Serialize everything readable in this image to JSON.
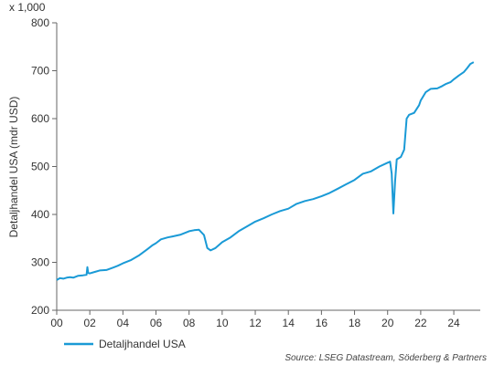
{
  "chart_data": {
    "type": "line",
    "multiplier_label": "x 1,000",
    "ylabel": "Detaljhandel USA (mdr USD)",
    "xlabel": "",
    "xlim": [
      2000,
      2025.6
    ],
    "ylim": [
      200,
      800
    ],
    "y_ticks": [
      200,
      300,
      400,
      500,
      600,
      700,
      800
    ],
    "x_ticks": [
      {
        "value": 2000,
        "label": "00"
      },
      {
        "value": 2002,
        "label": "02"
      },
      {
        "value": 2004,
        "label": "04"
      },
      {
        "value": 2006,
        "label": "06"
      },
      {
        "value": 2008,
        "label": "08"
      },
      {
        "value": 2010,
        "label": "10"
      },
      {
        "value": 2012,
        "label": "12"
      },
      {
        "value": 2014,
        "label": "14"
      },
      {
        "value": 2016,
        "label": "16"
      },
      {
        "value": 2018,
        "label": "18"
      },
      {
        "value": 2020,
        "label": "20"
      },
      {
        "value": 2022,
        "label": "22"
      },
      {
        "value": 2024,
        "label": "24"
      }
    ],
    "grid": false,
    "legend_position": "bottom-left",
    "series": [
      {
        "name": "Detaljhandel USA",
        "color": "#1a9ad6",
        "points": [
          [
            2000.0,
            263
          ],
          [
            2000.2,
            267
          ],
          [
            2000.4,
            266
          ],
          [
            2000.6,
            268
          ],
          [
            2000.8,
            269
          ],
          [
            2001.0,
            268
          ],
          [
            2001.3,
            272
          ],
          [
            2001.6,
            273
          ],
          [
            2001.8,
            274
          ],
          [
            2001.85,
            290
          ],
          [
            2001.9,
            278
          ],
          [
            2002.0,
            277
          ],
          [
            2002.3,
            280
          ],
          [
            2002.6,
            283
          ],
          [
            2003.0,
            284
          ],
          [
            2003.4,
            289
          ],
          [
            2003.7,
            293
          ],
          [
            2004.0,
            298
          ],
          [
            2004.5,
            305
          ],
          [
            2005.0,
            315
          ],
          [
            2005.5,
            328
          ],
          [
            2005.8,
            336
          ],
          [
            2006.0,
            340
          ],
          [
            2006.3,
            348
          ],
          [
            2006.7,
            352
          ],
          [
            2007.0,
            354
          ],
          [
            2007.5,
            358
          ],
          [
            2008.0,
            365
          ],
          [
            2008.3,
            367
          ],
          [
            2008.6,
            368
          ],
          [
            2008.9,
            357
          ],
          [
            2009.1,
            330
          ],
          [
            2009.3,
            325
          ],
          [
            2009.6,
            330
          ],
          [
            2010.0,
            342
          ],
          [
            2010.5,
            352
          ],
          [
            2011.0,
            365
          ],
          [
            2011.5,
            375
          ],
          [
            2012.0,
            385
          ],
          [
            2012.5,
            392
          ],
          [
            2013.0,
            400
          ],
          [
            2013.5,
            407
          ],
          [
            2014.0,
            412
          ],
          [
            2014.5,
            422
          ],
          [
            2015.0,
            428
          ],
          [
            2015.5,
            432
          ],
          [
            2016.0,
            438
          ],
          [
            2016.5,
            445
          ],
          [
            2017.0,
            454
          ],
          [
            2017.5,
            463
          ],
          [
            2018.0,
            472
          ],
          [
            2018.5,
            485
          ],
          [
            2019.0,
            490
          ],
          [
            2019.5,
            500
          ],
          [
            2020.0,
            508
          ],
          [
            2020.15,
            510
          ],
          [
            2020.25,
            485
          ],
          [
            2020.35,
            402
          ],
          [
            2020.45,
            470
          ],
          [
            2020.55,
            515
          ],
          [
            2020.8,
            520
          ],
          [
            2021.0,
            535
          ],
          [
            2021.15,
            600
          ],
          [
            2021.3,
            608
          ],
          [
            2021.6,
            612
          ],
          [
            2021.9,
            628
          ],
          [
            2022.0,
            638
          ],
          [
            2022.3,
            655
          ],
          [
            2022.6,
            662
          ],
          [
            2023.0,
            663
          ],
          [
            2023.3,
            668
          ],
          [
            2023.5,
            672
          ],
          [
            2023.8,
            676
          ],
          [
            2024.0,
            682
          ],
          [
            2024.3,
            690
          ],
          [
            2024.6,
            697
          ],
          [
            2024.8,
            705
          ],
          [
            2025.0,
            714
          ],
          [
            2025.2,
            718
          ]
        ]
      }
    ]
  },
  "legend": {
    "label": "Detaljhandel USA"
  },
  "source": "Source: LSEG Datastream, Söderberg & Partners"
}
